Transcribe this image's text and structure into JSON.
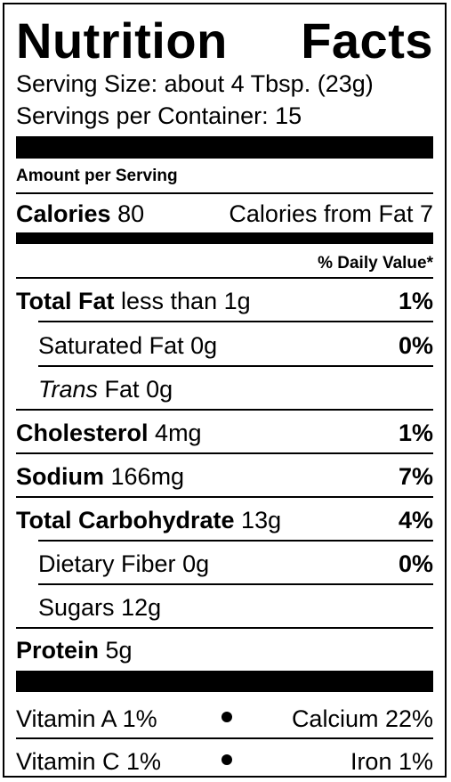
{
  "title": {
    "word1": "Nutrition",
    "word2": "Facts"
  },
  "serving_size": "Serving Size: about 4 Tbsp. (23g)",
  "servings_per_container": "Servings per Container: 15",
  "amount_per_serving": "Amount per Serving",
  "calories": {
    "label": "Calories",
    "value": "80",
    "from_fat": "Calories from Fat 7"
  },
  "daily_value_header": "% Daily Value*",
  "nutrients": [
    {
      "name": "Total Fat",
      "amount": "less than 1g",
      "dv": "1%"
    },
    {
      "name": "Saturated Fat",
      "amount": "0g",
      "dv": "0%"
    },
    {
      "name": "Trans",
      "name_suffix": "Fat",
      "amount": "0g",
      "dv": ""
    },
    {
      "name": "Cholesterol",
      "amount": "4mg",
      "dv": "1%"
    },
    {
      "name": "Sodium",
      "amount": "166mg",
      "dv": "7%"
    },
    {
      "name": "Total Carbohydrate",
      "amount": "13g",
      "dv": "4%"
    },
    {
      "name": "Dietary Fiber",
      "amount": "0g",
      "dv": "0%"
    },
    {
      "name": "Sugars",
      "amount": "12g",
      "dv": ""
    },
    {
      "name": "Protein",
      "amount": "5g",
      "dv": ""
    }
  ],
  "vitamins": [
    {
      "left": "Vitamin A 1%",
      "right": "Calcium 22%"
    },
    {
      "left": "Vitamin C 1%",
      "right": "Iron 1%"
    }
  ]
}
